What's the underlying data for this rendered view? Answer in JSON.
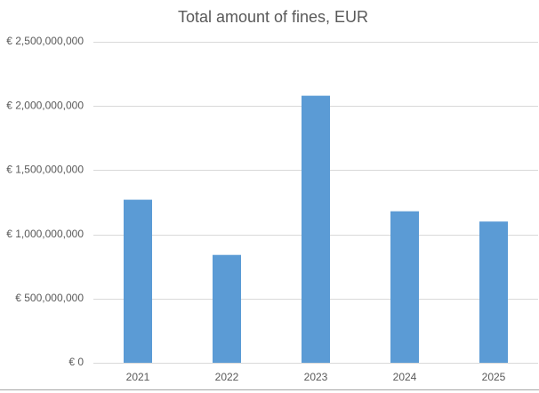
{
  "chart_data": {
    "type": "bar",
    "title": "Total amount of fines, EUR",
    "categories": [
      "2021",
      "2022",
      "2023",
      "2024",
      "2025"
    ],
    "values": [
      1270000000,
      840000000,
      2080000000,
      1180000000,
      1100000000
    ],
    "color": "#5b9bd5",
    "ylim": [
      0,
      2500000000
    ],
    "yticks": [
      {
        "value": 0,
        "label": "€ 0"
      },
      {
        "value": 500000000,
        "label": "€ 500,000,000"
      },
      {
        "value": 1000000000,
        "label": "€ 1,000,000,000"
      },
      {
        "value": 1500000000,
        "label": "€ 1,500,000,000"
      },
      {
        "value": 2000000000,
        "label": "€ 2,000,000,000"
      },
      {
        "value": 2500000000,
        "label": "€ 2,500,000,000"
      }
    ],
    "grid": true
  }
}
